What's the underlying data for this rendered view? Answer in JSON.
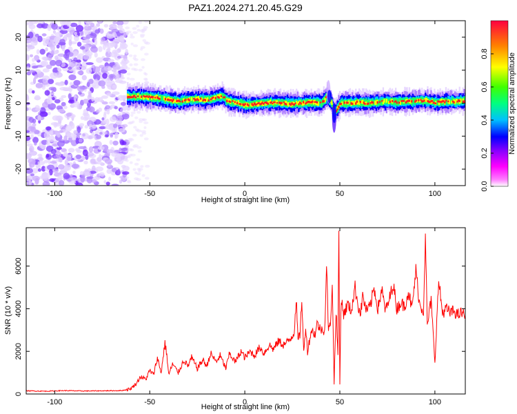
{
  "title": "PAZ1.2024.271.20.45.G29",
  "colorbar": {
    "label": "Normalized spectral amplitude",
    "ticks": [
      "0.0",
      "0.2",
      "0.4",
      "0.6",
      "0.8"
    ],
    "tick_values": [
      0.0,
      0.2,
      0.4,
      0.6,
      0.8
    ],
    "range": [
      0,
      1
    ],
    "colors": [
      "#ffffff",
      "#ff00ff",
      "#8000ff",
      "#0000ff",
      "#00c0ff",
      "#00ff80",
      "#40ff00",
      "#ffff00",
      "#ff8000",
      "#ff0000"
    ]
  },
  "chart_data": [
    {
      "type": "heatmap",
      "xlabel": "Height of straight line (km)",
      "ylabel": "Frequency (Hz)",
      "xlim": [
        -115,
        116
      ],
      "ylim": [
        -25,
        25
      ],
      "xticks": [
        -100,
        -50,
        0,
        50,
        100
      ],
      "yticks": [
        -20,
        -10,
        0,
        10,
        20
      ],
      "noise_region_x": [
        -115,
        -62
      ],
      "ridge_x": [
        -62,
        -55,
        -50,
        -45,
        -40,
        -35,
        -30,
        -25,
        -20,
        -15,
        -12,
        -10,
        -5,
        0,
        5,
        10,
        15,
        20,
        25,
        30,
        35,
        40,
        43,
        45,
        47,
        50,
        55,
        60,
        65,
        70,
        75,
        80,
        85,
        90,
        95,
        100,
        105,
        110,
        116
      ],
      "ridge_frequency": [
        2.0,
        2.0,
        1.8,
        1.5,
        1.0,
        0.5,
        1.0,
        1.2,
        1.0,
        1.8,
        2.2,
        0.8,
        0.2,
        -0.5,
        -0.3,
        0.0,
        0.2,
        0.0,
        -0.2,
        0.0,
        0.3,
        0.0,
        2.0,
        0.5,
        -3.0,
        0.0,
        0.0,
        0.2,
        0.0,
        0.3,
        0.5,
        0.3,
        0.5,
        0.6,
        0.8,
        0.2,
        0.5,
        0.5,
        0.8
      ]
    },
    {
      "type": "line",
      "xlabel": "Height of straight line (km)",
      "ylabel": "SNR (10 * v/v)",
      "xlim": [
        -115,
        116
      ],
      "ylim": [
        0,
        7800
      ],
      "xticks": [
        -100,
        -50,
        0,
        50,
        100
      ],
      "yticks": [
        0,
        2000,
        4000,
        6000
      ],
      "series": [
        {
          "color": "#ff0000",
          "x": [
            -115,
            -105,
            -95,
            -85,
            -75,
            -65,
            -62,
            -60,
            -57,
            -55,
            -52,
            -50,
            -48,
            -46,
            -44,
            -42,
            -41,
            -40,
            -38,
            -35,
            -32,
            -30,
            -28,
            -25,
            -22,
            -20,
            -18,
            -15,
            -13,
            -10,
            -8,
            -5,
            -2,
            0,
            3,
            5,
            8,
            10,
            13,
            15,
            18,
            20,
            22,
            24,
            26,
            27,
            28,
            29,
            30,
            31,
            32,
            33,
            35,
            37,
            38,
            40,
            41,
            42,
            43,
            44,
            45,
            46,
            47,
            48,
            49,
            49.5,
            50,
            50.5,
            51,
            52,
            54,
            56,
            58,
            60,
            61,
            62,
            64,
            66,
            68,
            70,
            72,
            74,
            76,
            78,
            80,
            82,
            84,
            86,
            88,
            90,
            92,
            94,
            95,
            96,
            98,
            100,
            102,
            104,
            106,
            108,
            110,
            112,
            114,
            116
          ],
          "y": [
            150,
            130,
            160,
            140,
            150,
            160,
            200,
            250,
            500,
            800,
            700,
            1100,
            900,
            1700,
            1000,
            2400,
            1800,
            900,
            1400,
            1000,
            1600,
            1300,
            1700,
            1200,
            1600,
            1300,
            1900,
            1500,
            1800,
            1200,
            1900,
            1500,
            2000,
            1700,
            2000,
            1800,
            2200,
            1900,
            2300,
            2100,
            2500,
            2300,
            2400,
            2600,
            2900,
            4500,
            2500,
            2800,
            4500,
            1900,
            3200,
            2000,
            3000,
            2800,
            3300,
            3000,
            3100,
            2900,
            6000,
            3000,
            3200,
            5300,
            500,
            4000,
            1800,
            7800,
            400,
            3800,
            4500,
            3700,
            4200,
            3900,
            5000,
            4000,
            3800,
            4600,
            3900,
            4100,
            5000,
            4000,
            4900,
            3900,
            4400,
            5200,
            4000,
            4300,
            4100,
            4800,
            4000,
            5800,
            4200,
            3900,
            7300,
            3200,
            4400,
            1500,
            5300,
            3800,
            4000,
            3800,
            3900,
            3700,
            3800,
            3700
          ]
        }
      ]
    }
  ]
}
